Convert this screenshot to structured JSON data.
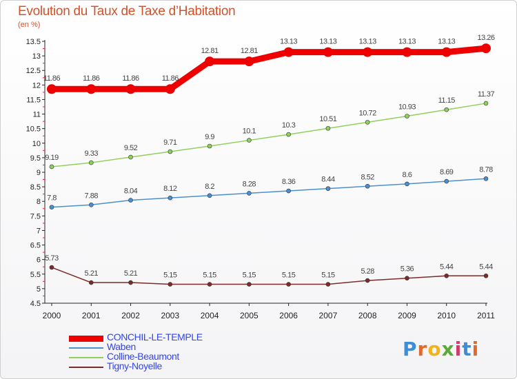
{
  "title": "Evolution du Taux de Taxe d’Habitation",
  "subtitle": "(en %)",
  "logo": {
    "text": "Proxiti",
    "colors": [
      "#3b8fd6",
      "#e06a2c",
      "#f2b21b",
      "#5aaa3a",
      "#d13a6a",
      "#3b8fd6",
      "#e06a2c"
    ]
  },
  "chart_data": {
    "type": "line",
    "title": "Evolution du Taux de Taxe d’Habitation",
    "ylabel": "(en %)",
    "x": [
      "2000",
      "2001",
      "2002",
      "2003",
      "2004",
      "2005",
      "2006",
      "2007",
      "2008",
      "2009",
      "2010",
      "2011"
    ],
    "ylim": [
      4.5,
      13.5
    ],
    "yticks": [
      "4.5",
      "5",
      "5.5",
      "6",
      "6.5",
      "7",
      "7.5",
      "8",
      "8.5",
      "9",
      "9.5",
      "10",
      "10.5",
      "11",
      "11.5",
      "12",
      "12.5",
      "13",
      "13.5"
    ],
    "grid": false,
    "legend_position": "bottom-left",
    "series": [
      {
        "name": "CONCHIL-LE-TEMPLE",
        "color": "#ee0000",
        "values": [
          11.86,
          11.86,
          11.86,
          11.86,
          12.81,
          12.81,
          13.13,
          13.13,
          13.13,
          13.13,
          13.13,
          13.26
        ],
        "labels": [
          "11.86",
          "11.86",
          "11.86",
          "11.86",
          "12.81",
          "12.81",
          "13.13",
          "13.13",
          "13.13",
          "13.13",
          "13.13",
          "13.26"
        ]
      },
      {
        "name": "Waben",
        "color": "#4a8fd0",
        "values": [
          7.8,
          7.88,
          8.04,
          8.12,
          8.2,
          8.28,
          8.36,
          8.44,
          8.52,
          8.6,
          8.69,
          8.78
        ],
        "labels": [
          "7.8",
          "7.88",
          "8.04",
          "8.12",
          "8.2",
          "8.28",
          "8.36",
          "8.44",
          "8.52",
          "8.6",
          "8.69",
          "8.78"
        ]
      },
      {
        "name": "Colline-Beaumont",
        "color": "#8fd05a",
        "values": [
          9.19,
          9.33,
          9.52,
          9.71,
          9.9,
          10.1,
          10.3,
          10.51,
          10.72,
          10.93,
          11.15,
          11.37
        ],
        "labels": [
          "9.19",
          "9.33",
          "9.52",
          "9.71",
          "9.9",
          "10.1",
          "10.3",
          "10.51",
          "10.72",
          "10.93",
          "11.15",
          "11.37"
        ]
      },
      {
        "name": "Tigny-Noyelle",
        "color": "#7a2b2b",
        "values": [
          5.73,
          5.21,
          5.21,
          5.15,
          5.15,
          5.15,
          5.15,
          5.15,
          5.28,
          5.36,
          5.44,
          5.44
        ],
        "labels": [
          "5.73",
          "5.21",
          "5.21",
          "5.15",
          "5.15",
          "5.15",
          "5.15",
          "5.15",
          "5.28",
          "5.36",
          "5.44",
          "5.44"
        ]
      }
    ]
  }
}
